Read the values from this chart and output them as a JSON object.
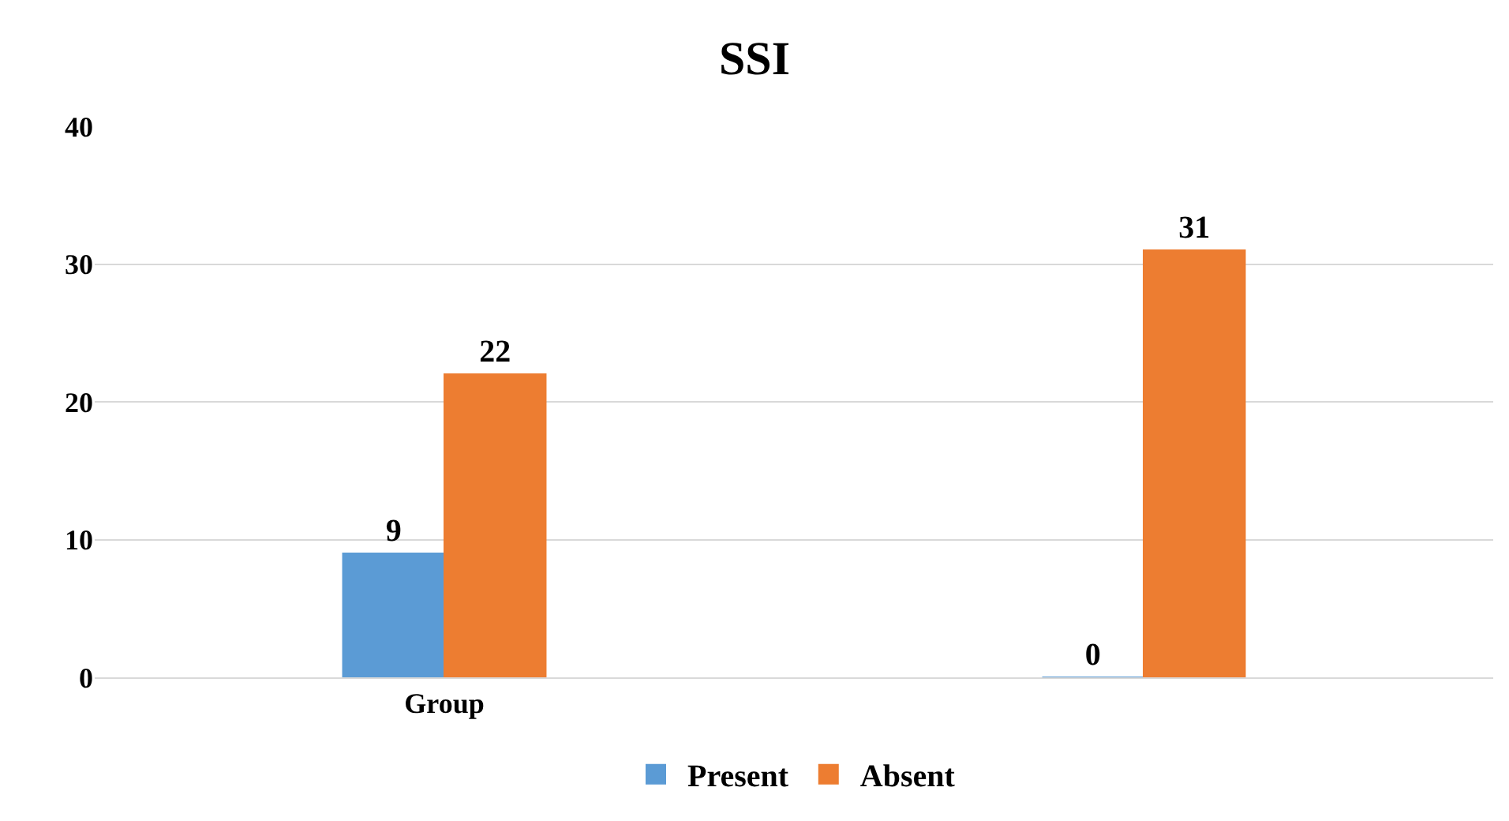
{
  "chart_data": {
    "type": "bar",
    "title": "SSI",
    "categories": [
      "Group",
      null
    ],
    "series": [
      {
        "name": "Present",
        "color": "#5b9bd5",
        "values": [
          9,
          0
        ]
      },
      {
        "name": "Absent",
        "color": "#ed7d31",
        "values": [
          22,
          31
        ]
      }
    ],
    "ylim": [
      0,
      40
    ],
    "yticks": [
      0,
      10,
      20,
      30,
      40
    ],
    "grid": "y",
    "legend": "bottom",
    "data_labels": true
  }
}
